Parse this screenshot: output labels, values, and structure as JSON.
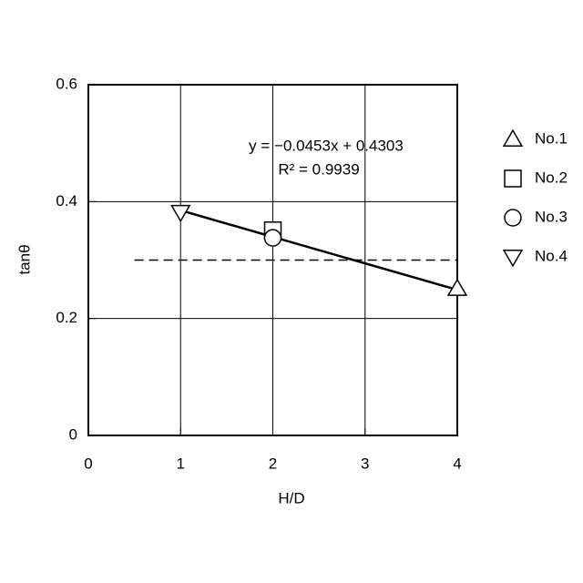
{
  "chart_data": {
    "type": "scatter",
    "xlabel": "H/D",
    "ylabel": "tanθ",
    "xlim": [
      0,
      4
    ],
    "ylim": [
      0,
      0.6
    ],
    "xticks": [
      0,
      1,
      2,
      3,
      4
    ],
    "yticks": [
      0,
      0.2,
      0.4,
      0.6
    ],
    "grid": true,
    "legend": "right",
    "annotations": [
      "y = −0.0453x + 0.4303",
      "R² = 0.9939"
    ],
    "series": [
      {
        "name": "No.1",
        "marker": "triangle-up",
        "color": "#000000",
        "x": [
          4
        ],
        "values": [
          0.251
        ]
      },
      {
        "name": "No.2",
        "marker": "square",
        "color": "#000000",
        "x": [
          2
        ],
        "values": [
          0.351
        ]
      },
      {
        "name": "No.3",
        "marker": "circle",
        "color": "#000000",
        "x": [
          2
        ],
        "values": [
          0.338
        ]
      },
      {
        "name": "No.4",
        "marker": "triangle-down",
        "color": "#000000",
        "x": [
          1
        ],
        "values": [
          0.382
        ]
      }
    ],
    "fit": {
      "x": [
        1,
        4
      ],
      "values": [
        0.385,
        0.249
      ]
    },
    "reference_line": {
      "x": [
        0.5,
        4
      ],
      "values": [
        0.3,
        0.3
      ]
    }
  }
}
